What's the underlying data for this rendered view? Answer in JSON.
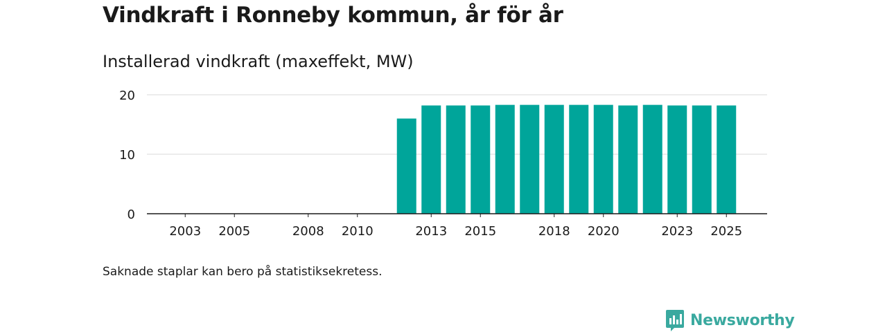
{
  "chart_data": {
    "type": "bar",
    "title": "Vindkraft i Ronneby kommun, år för år",
    "subtitle": "Installerad vindkraft (maxeffekt, MW)",
    "xlabel": "",
    "ylabel": "",
    "categories": [
      "2002",
      "2003",
      "2004",
      "2005",
      "2006",
      "2007",
      "2008",
      "2009",
      "2010",
      "2011",
      "2012",
      "2013",
      "2014",
      "2015",
      "2016",
      "2017",
      "2018",
      "2019",
      "2020",
      "2021",
      "2022",
      "2023",
      "2024",
      "2025"
    ],
    "x_tick_labels": [
      "2003",
      "2005",
      "2008",
      "2010",
      "2013",
      "2015",
      "2018",
      "2020",
      "2023",
      "2025"
    ],
    "values": [
      0,
      0,
      0,
      0,
      0,
      0,
      0,
      0,
      0,
      0,
      16,
      18.2,
      18.2,
      18.2,
      18.3,
      18.3,
      18.3,
      18.3,
      18.3,
      18.2,
      18.3,
      18.2,
      18.2,
      18.2
    ],
    "ylim": [
      0,
      20
    ],
    "yticks": [
      0,
      10,
      20
    ],
    "grid": true,
    "bar_color": "#00a59a"
  },
  "note": "Saknade staplar kan bero på statistiksekretess.",
  "brand": {
    "name": "Newsworthy",
    "icon": "newsworthy-logo-icon",
    "color": "#3aa99f"
  }
}
